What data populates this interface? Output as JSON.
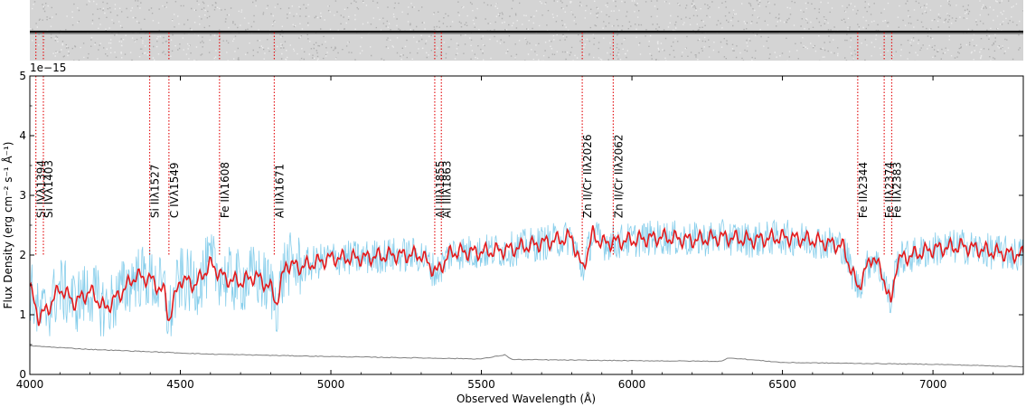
{
  "chart_data": {
    "type": "line",
    "title": "",
    "xlabel": "Observed Wavelength (Å)",
    "ylabel": "Flux Density (erg cm⁻² s⁻¹ Å⁻¹)",
    "y_multiplier": "1e−15",
    "xlim": [
      4000,
      7300
    ],
    "ylim": [
      0,
      5
    ],
    "x_ticks": [
      4000,
      4500,
      5000,
      5500,
      6000,
      6500,
      7000
    ],
    "x_tick_labels": [
      "4000",
      "4500",
      "5000",
      "5500",
      "6000",
      "6500",
      "7000"
    ],
    "y_ticks": [
      0,
      1,
      2,
      3,
      4,
      5
    ],
    "y_tick_labels": [
      "0",
      "1",
      "2",
      "3",
      "4",
      "5"
    ],
    "colors": {
      "raw_flux": "#87ceeb",
      "smoothed_flux": "#e41a1c",
      "error": "#808080",
      "line_marker": "#e41a1c",
      "spectrum_2d_bg": "#d4d4d4"
    },
    "series": [
      {
        "name": "smoothed flux",
        "style": "red",
        "x": [
          4000,
          4030,
          4060,
          4100,
          4150,
          4200,
          4250,
          4300,
          4350,
          4400,
          4450,
          4460,
          4500,
          4550,
          4600,
          4650,
          4700,
          4750,
          4800,
          4820,
          4850,
          4900,
          5000,
          5100,
          5200,
          5300,
          5350,
          5400,
          5500,
          5600,
          5700,
          5800,
          5835,
          5870,
          5900,
          6000,
          6100,
          6200,
          6300,
          6400,
          6500,
          6600,
          6700,
          6750,
          6800,
          6838,
          6860,
          6880,
          6900,
          7000,
          7100,
          7200,
          7300
        ],
        "y": [
          1.45,
          0.95,
          1.1,
          1.45,
          1.2,
          1.4,
          1.1,
          1.35,
          1.65,
          1.6,
          1.35,
          0.9,
          1.6,
          1.5,
          1.85,
          1.6,
          1.55,
          1.65,
          1.45,
          1.2,
          1.85,
          1.8,
          1.95,
          1.95,
          2.0,
          2.0,
          1.7,
          2.05,
          2.05,
          2.1,
          2.2,
          2.3,
          1.75,
          2.35,
          2.2,
          2.25,
          2.3,
          2.25,
          2.3,
          2.25,
          2.3,
          2.25,
          2.15,
          1.45,
          2.0,
          1.6,
          1.15,
          1.9,
          1.95,
          2.1,
          2.15,
          2.05,
          2.0
        ]
      },
      {
        "name": "raw flux",
        "style": "lightblue noisy",
        "x": [
          4000,
          4300,
          4500,
          5000,
          5500,
          6000,
          6500,
          7000,
          7300
        ],
        "y": [
          1.45,
          1.3,
          1.55,
          1.9,
          2.05,
          2.25,
          2.3,
          2.1,
          2.0
        ]
      },
      {
        "name": "error",
        "style": "grey",
        "x": [
          4000,
          4200,
          4400,
          4600,
          5000,
          5500,
          5580,
          5600,
          6000,
          6300,
          6320,
          6500,
          7000,
          7300
        ],
        "y": [
          0.48,
          0.42,
          0.38,
          0.34,
          0.3,
          0.26,
          0.33,
          0.25,
          0.23,
          0.22,
          0.28,
          0.2,
          0.17,
          0.13
        ]
      }
    ],
    "absorption_lines": [
      {
        "label": "Si IVλ1394",
        "wavelength": 4020
      },
      {
        "label": "Si IVλ1403",
        "wavelength": 4045
      },
      {
        "label": "Si IIλ1527",
        "wavelength": 4398
      },
      {
        "label": "C IVλ1549",
        "wavelength": 4462
      },
      {
        "label": "Fe IIλ1608",
        "wavelength": 4630
      },
      {
        "label": "Al IIλ1671",
        "wavelength": 4812
      },
      {
        "label": "Al IIIλ1855",
        "wavelength": 5345
      },
      {
        "label": "Al IIIλ1863",
        "wavelength": 5367
      },
      {
        "label": "Zn II/Cr IIλ2026",
        "wavelength": 5835
      },
      {
        "label": "Zn II/Cr IIλ2062",
        "wavelength": 5938
      },
      {
        "label": "Fe IIλ2344",
        "wavelength": 6750
      },
      {
        "label": "Fe IIλ2374",
        "wavelength": 6838
      },
      {
        "label": "Fe IIλ2383",
        "wavelength": 6863
      }
    ]
  }
}
